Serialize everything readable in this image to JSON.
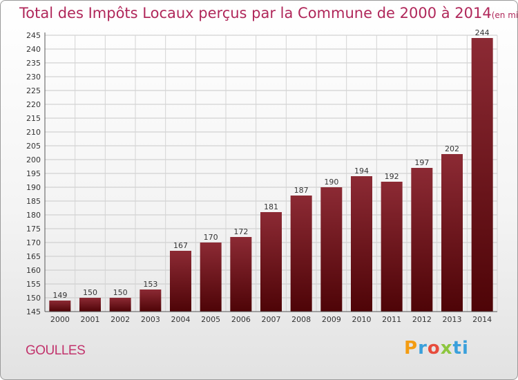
{
  "chart_data": {
    "type": "bar",
    "title": "Total des Impôts Locaux perçus par la Commune de 2000 à 2014",
    "unit": "(en milliers d'€)",
    "categories": [
      "2000",
      "2001",
      "2002",
      "2003",
      "2004",
      "2005",
      "2006",
      "2007",
      "2008",
      "2009",
      "2010",
      "2011",
      "2012",
      "2013",
      "2014"
    ],
    "values": [
      149,
      150,
      150,
      153,
      167,
      170,
      172,
      181,
      187,
      190,
      194,
      192,
      197,
      202,
      244
    ],
    "ylim": [
      145,
      245
    ],
    "yticks": [
      145,
      150,
      155,
      160,
      165,
      170,
      175,
      180,
      185,
      190,
      195,
      200,
      205,
      210,
      215,
      220,
      225,
      230,
      235,
      240,
      245
    ],
    "grid": true,
    "xlabel": "",
    "ylabel": "",
    "bar_color": "#6b1218"
  },
  "commune": "GOULLES",
  "logo": {
    "p1": "P",
    "p2": "r",
    "p3": "o",
    "p4": "x",
    "p5": "i",
    "p6": "ti"
  }
}
